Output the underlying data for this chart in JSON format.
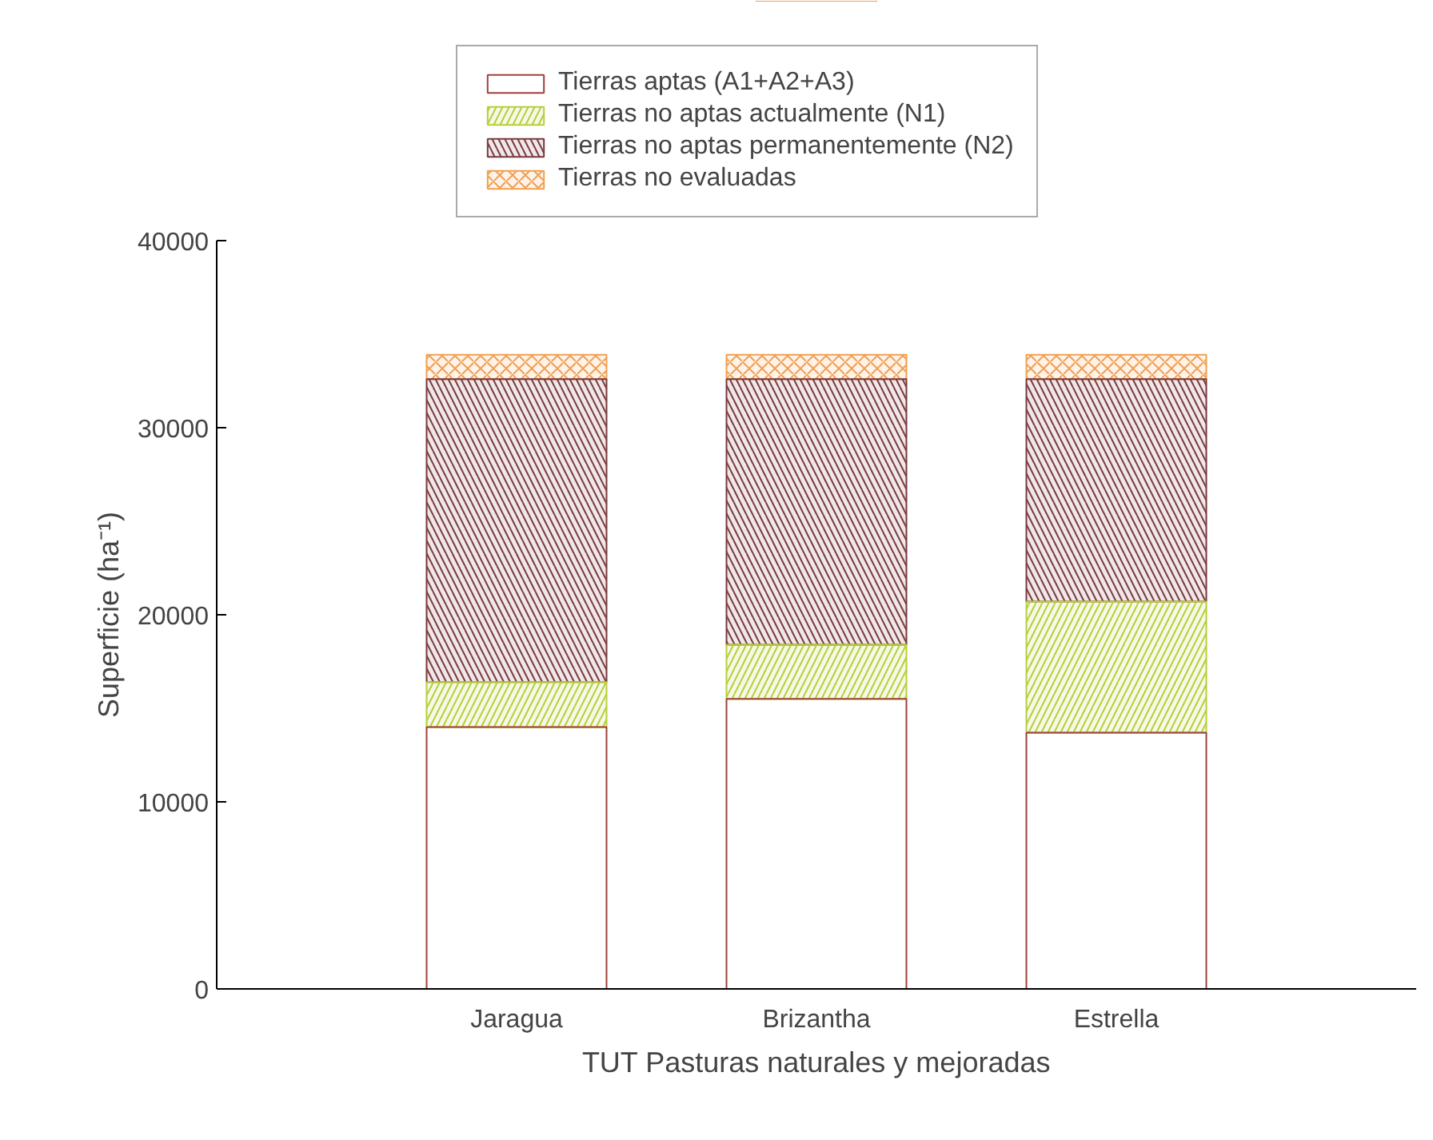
{
  "chart_data": {
    "type": "bar",
    "stacked": true,
    "xlabel": "TUT Pasturas naturales y mejoradas",
    "ylabel": "Superficie (ha⁻¹)",
    "categories": [
      "Jaragua",
      "Brizantha",
      "Estrella"
    ],
    "series": [
      {
        "name": "Tierras aptas (A1+A2+A3)",
        "color": "#a0403a",
        "values": [
          14000,
          15500,
          13700
        ]
      },
      {
        "name": "Tierras no aptas actualmente (N1)",
        "color": "#b5cf3a",
        "values": [
          2400,
          2900,
          7000
        ]
      },
      {
        "name": "Tierras no aptas permanentemente (N2)",
        "color": "#7a3a3e",
        "values": [
          16200,
          14200,
          11900
        ]
      },
      {
        "name": "Tierras no evaluadas",
        "color": "#f0a050",
        "values": [
          1300,
          1300,
          1300
        ]
      }
    ],
    "ylim": [
      0,
      40000
    ],
    "yticks": [
      0,
      10000,
      20000,
      30000,
      40000
    ],
    "grid": false,
    "legend": "top"
  }
}
